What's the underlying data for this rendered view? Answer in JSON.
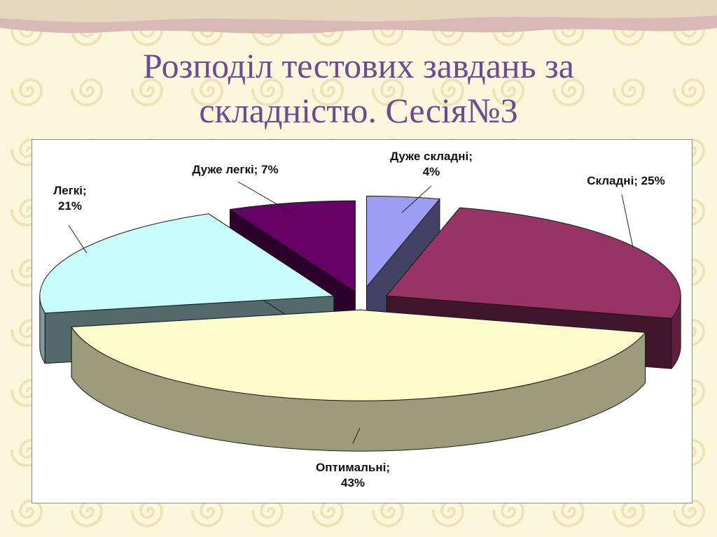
{
  "slide": {
    "title_line1": "Розподіл тестових завдань за",
    "title_line2": "складністю. Сесія№3"
  },
  "colors": {
    "background": "#fbf7dc",
    "title": "#6e4a90",
    "banner": "#d9b9b6"
  },
  "chart_data": {
    "type": "pie",
    "style": "3d-exploded",
    "title": "",
    "categories": [
      "Дуже складні",
      "Складні",
      "Оптимальні",
      "Легкі",
      "Дуже легкі"
    ],
    "values": [
      4,
      25,
      43,
      21,
      7
    ],
    "unit": "%",
    "labels": [
      {
        "line1": "Дуже складні;",
        "line2": "4%"
      },
      {
        "line1": "Складні; 25%",
        "line2": ""
      },
      {
        "line1": "Оптимальні;",
        "line2": "43%"
      },
      {
        "line1": "Легкі;",
        "line2": "21%"
      },
      {
        "line1": "Дуже легкі; 7%",
        "line2": ""
      }
    ],
    "colors": [
      "#9d9df2",
      "#983463",
      "#fcfcca",
      "#c9fdfd",
      "#660066"
    ],
    "legend": "none"
  }
}
